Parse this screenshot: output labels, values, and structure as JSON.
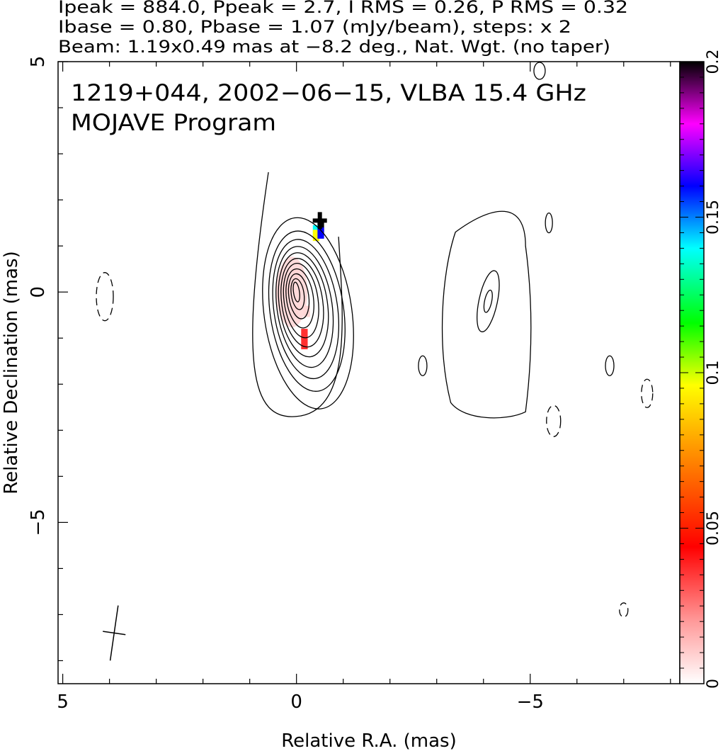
{
  "header": {
    "line1": "Ipeak = 884.0, Ppeak = 2.7, I RMS = 0.26, P RMS = 0.32",
    "line2": "Ibase = 0.80, Pbase = 1.07 (mJy/beam), steps: x 2",
    "line3": "Beam: 1.19x0.49 mas at −8.2 deg., Nat. Wgt. (no taper)"
  },
  "chart_data": {
    "type": "heatmap",
    "title": "1219+044, 2002−06−15, VLBA 15.4 GHz",
    "subtitle": "MOJAVE Program",
    "xlabel": "Relative R.A. (mas)",
    "ylabel": "Relative Declination (mas)",
    "xlim": [
      5.1,
      -8.2
    ],
    "ylim": [
      -8.5,
      5.0
    ],
    "x_ticks": [
      5,
      0,
      -5
    ],
    "x_tick_labels": [
      "5",
      "0",
      "−5"
    ],
    "y_ticks": [
      5,
      0,
      -5
    ],
    "y_tick_labels": [
      "5",
      "0",
      "−5"
    ],
    "contours": {
      "levels_mJy_per_beam": [
        0.8,
        1.6,
        3.2,
        6.4,
        12.8,
        25.6,
        51.2,
        102.4,
        204.8,
        409.6,
        819.2
      ],
      "negative_levels": "dashed"
    },
    "core_component": {
      "center": [
        0.0,
        0.0
      ],
      "peak_mJy_per_beam": 884.0
    },
    "jet_component": {
      "center": [
        -4.1,
        -0.2
      ]
    },
    "polarization_fraction_pixels": [
      {
        "x": 0.05,
        "y": 0.4,
        "value": 0.008
      },
      {
        "x": 0.2,
        "y": 0.1,
        "value": 0.005
      },
      {
        "x": 0.05,
        "y": -0.4,
        "value": 0.006
      },
      {
        "x": -0.2,
        "y": -0.4,
        "value": 0.004
      },
      {
        "x": -0.15,
        "y": -0.9,
        "value": 0.02
      },
      {
        "x": -0.15,
        "y": -1.1,
        "value": 0.025
      },
      {
        "x": -0.5,
        "y": 1.45,
        "value": 0.2
      },
      {
        "x": -0.4,
        "y": 1.35,
        "value": 0.13
      },
      {
        "x": -0.4,
        "y": 1.25,
        "value": 0.075
      },
      {
        "x": -0.5,
        "y": 1.3,
        "value": 0.16
      }
    ],
    "markers": [
      {
        "type": "cross",
        "x": -0.5,
        "y": 1.55
      }
    ],
    "beam": {
      "major_mas": 1.19,
      "minor_mas": 0.49,
      "pa_deg": -8.2,
      "center": [
        3.9,
        -7.4
      ]
    },
    "colorbar": {
      "min": 0,
      "max": 0.2,
      "ticks": [
        0,
        0.05,
        0.1,
        0.15,
        0.2
      ],
      "tick_labels": [
        "0",
        "0.05",
        "0.1",
        "0.15",
        "0.2"
      ],
      "colormap": [
        "#ffffff",
        "#ff0000",
        "#ff8c00",
        "#ffff00",
        "#00ff00",
        "#00ffff",
        "#0000ff",
        "#ff00ff",
        "#000000"
      ]
    }
  }
}
